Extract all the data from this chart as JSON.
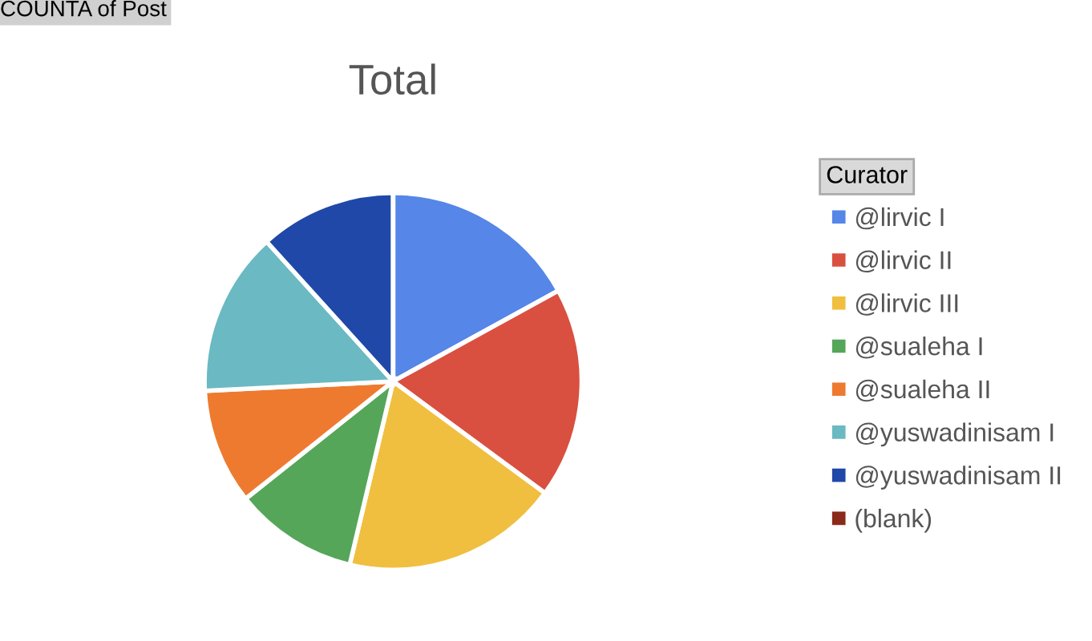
{
  "chart_data": {
    "type": "pie",
    "title": "Total",
    "legend_title": "Curator",
    "legend": "right",
    "categories": [
      "@lirvic I",
      "@lirvic II",
      "@lirvic III",
      "@sualeha I",
      "@sualeha II",
      "@yuswadinisam I",
      "@yuswadinisam II",
      "(blank)"
    ],
    "values": [
      17.0,
      18.1,
      18.6,
      10.6,
      9.9,
      14.1,
      11.7,
      0
    ],
    "colors": [
      "#5586e8",
      "#d95040",
      "#f0bf40",
      "#56a65a",
      "#ee7a30",
      "#6ab9c3",
      "#1f48a8",
      "#8b2a1a"
    ],
    "annotations": [
      "COUNTA of Post"
    ]
  }
}
